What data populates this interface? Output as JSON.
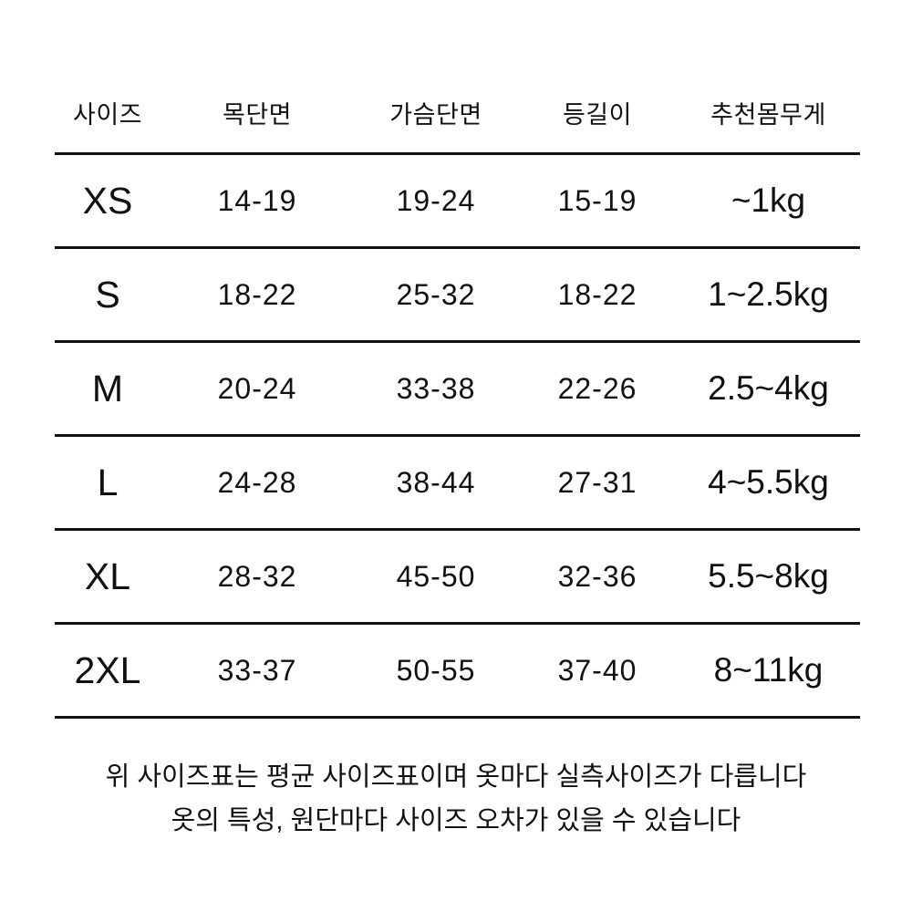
{
  "colors": {
    "background": "#ffffff",
    "text": "#111111",
    "rule_line": "#111111"
  },
  "table": {
    "headers": [
      "사이즈",
      "목단면",
      "가슴단면",
      "등길이",
      "추천몸무게"
    ],
    "rows": [
      {
        "size": "XS",
        "neck": "14-19",
        "chest": "19-24",
        "back": "15-19",
        "weight": "~1kg"
      },
      {
        "size": "S",
        "neck": "18-22",
        "chest": "25-32",
        "back": "18-22",
        "weight": "1~2.5kg"
      },
      {
        "size": "M",
        "neck": "20-24",
        "chest": "33-38",
        "back": "22-26",
        "weight": "2.5~4kg"
      },
      {
        "size": "L",
        "neck": "24-28",
        "chest": "38-44",
        "back": "27-31",
        "weight": "4~5.5kg"
      },
      {
        "size": "XL",
        "neck": "28-32",
        "chest": "45-50",
        "back": "32-36",
        "weight": "5.5~8kg"
      },
      {
        "size": "2XL",
        "neck": "33-37",
        "chest": "50-55",
        "back": "37-40",
        "weight": "8~11kg"
      }
    ]
  },
  "footer": {
    "line1": "위 사이즈표는 평균 사이즈표이며 옷마다 실측사이즈가 다릅니다",
    "line2": "옷의 특성, 원단마다 사이즈 오차가 있을 수 있습니다"
  },
  "chart_data": {
    "type": "table",
    "title": "사이즈표 (size chart)",
    "columns": [
      "사이즈",
      "목단면",
      "가슴단면",
      "등길이",
      "추천몸무게"
    ],
    "rows": [
      [
        "XS",
        "14-19",
        "19-24",
        "15-19",
        "~1kg"
      ],
      [
        "S",
        "18-22",
        "25-32",
        "18-22",
        "1~2.5kg"
      ],
      [
        "M",
        "20-24",
        "33-38",
        "22-26",
        "2.5~4kg"
      ],
      [
        "L",
        "24-28",
        "38-44",
        "27-31",
        "4~5.5kg"
      ],
      [
        "XL",
        "28-32",
        "45-50",
        "32-36",
        "5.5~8kg"
      ],
      [
        "2XL",
        "33-37",
        "50-55",
        "37-40",
        "8~11kg"
      ]
    ],
    "annotations": [
      "위 사이즈표는 평균 사이즈표이며 옷마다 실측사이즈가 다릅니다",
      "옷의 특성, 원단마다 사이즈 오차가 있을 수 있습니다"
    ],
    "layout_hints": {
      "grid": "horizontal rules only",
      "alignment": "all cells centered"
    }
  }
}
